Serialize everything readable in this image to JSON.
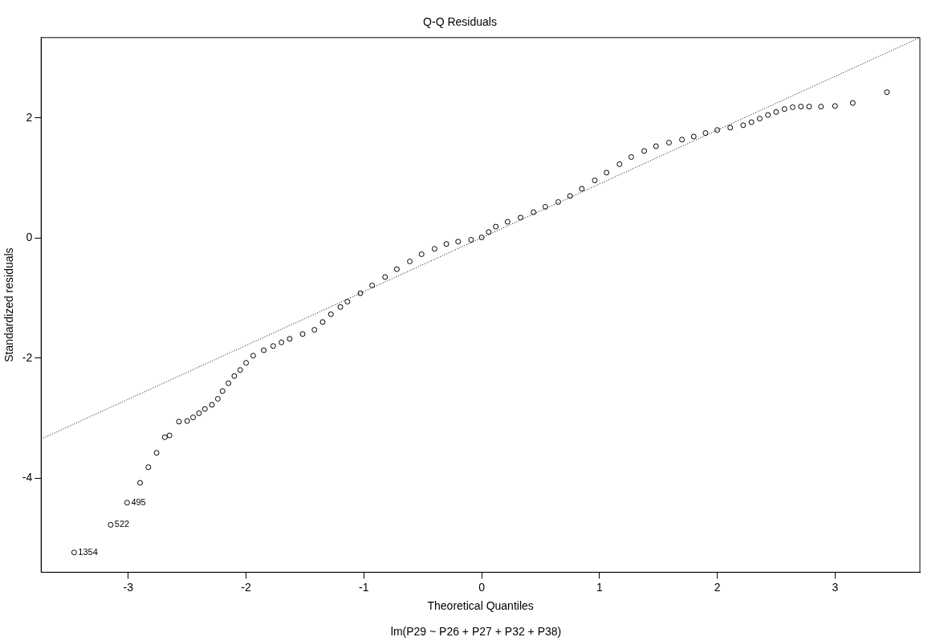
{
  "chart_data": {
    "type": "scatter",
    "title": "Q-Q Residuals",
    "xlabel": "Theoretical Quantiles",
    "ylabel": "Standardized residuals",
    "xlim": [
      -3.74,
      3.72
    ],
    "ylim": [
      -5.57,
      3.34
    ],
    "xticks": [
      -3,
      -2,
      -1,
      0,
      1,
      2,
      3
    ],
    "yticks": [
      -4,
      -2,
      0,
      2
    ],
    "grid": false,
    "legend": false,
    "series": [
      {
        "color": "#000000",
        "marker": "circle",
        "x": [
          -3.46,
          -3.15,
          -3.01,
          -2.9,
          -2.83,
          -2.76,
          -2.69,
          -2.65,
          -2.57,
          -2.5,
          -2.45,
          -2.4,
          -2.35,
          -2.29,
          -2.24,
          -2.2,
          -2.15,
          -2.1,
          -2.05,
          -2.0,
          -1.94,
          -1.85,
          -1.77,
          -1.7,
          -1.63,
          -1.52,
          -1.42,
          -1.35,
          -1.28,
          -1.2,
          -1.14,
          -1.03,
          -0.93,
          -0.82,
          -0.72,
          -0.61,
          -0.51,
          -0.4,
          -0.3,
          -0.2,
          -0.09,
          0,
          0.06,
          0.12,
          0.22,
          0.33,
          0.44,
          0.54,
          0.65,
          0.75,
          0.85,
          0.96,
          1.06,
          1.17,
          1.27,
          1.38,
          1.48,
          1.59,
          1.7,
          1.8,
          1.9,
          2.0,
          2.11,
          2.22,
          2.29,
          2.36,
          2.43,
          2.5,
          2.57,
          2.64,
          2.71,
          2.78,
          2.88,
          3.0,
          3.15,
          3.44
        ],
        "values": [
          -5.24,
          -4.78,
          -4.41,
          -4.08,
          -3.82,
          -3.58,
          -3.32,
          -3.29,
          -3.06,
          -3.05,
          -2.99,
          -2.92,
          -2.85,
          -2.78,
          -2.68,
          -2.55,
          -2.42,
          -2.3,
          -2.2,
          -2.08,
          -1.96,
          -1.87,
          -1.8,
          -1.74,
          -1.68,
          -1.6,
          -1.53,
          -1.4,
          -1.27,
          -1.15,
          -1.06,
          -0.92,
          -0.79,
          -0.65,
          -0.52,
          -0.39,
          -0.27,
          -0.18,
          -0.1,
          -0.06,
          -0.03,
          0.01,
          0.1,
          0.19,
          0.27,
          0.34,
          0.43,
          0.52,
          0.6,
          0.7,
          0.82,
          0.96,
          1.09,
          1.23,
          1.35,
          1.45,
          1.53,
          1.59,
          1.64,
          1.69,
          1.75,
          1.8,
          1.84,
          1.88,
          1.93,
          1.99,
          2.05,
          2.1,
          2.15,
          2.18,
          2.19,
          2.19,
          2.19,
          2.2,
          2.25,
          2.43
        ]
      },
      {
        "type": "line",
        "color": "#000000",
        "line_style": "dotted",
        "marker": "none",
        "x": [
          -3.74,
          3.72
        ],
        "values": [
          -3.35,
          3.34
        ]
      }
    ],
    "annotations": [
      {
        "text": "1354",
        "x": -3.46,
        "y": -5.24
      },
      {
        "text": "522",
        "x": -3.15,
        "y": -4.78
      },
      {
        "text": "495",
        "x": -3.01,
        "y": -4.41
      },
      "lm(P29 ~ P26 + P27 + P32 + P38)"
    ]
  }
}
